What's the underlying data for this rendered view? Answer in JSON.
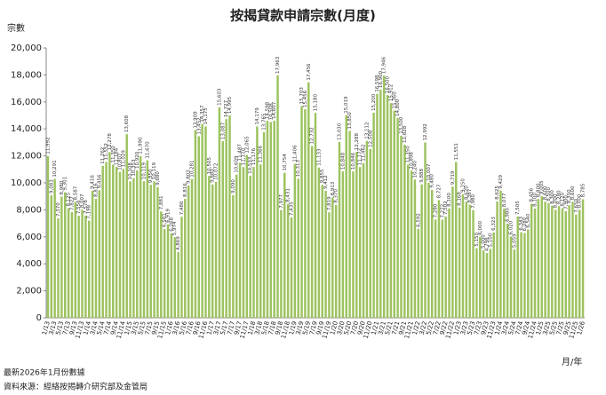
{
  "chart_data": {
    "type": "bar",
    "title": "按揭貸款申請宗數(月度)",
    "y_label": "宗數",
    "x_label": "月/年",
    "footnotes": [
      "最新2026年1月份數據",
      "資料來源：經絡按揭轉介研究部及金管局"
    ],
    "color": "#9dc35f",
    "ylim": [
      0,
      20000
    ],
    "yticks": [
      0,
      {
        "value": 2000,
        "label": "2,000"
      },
      {
        "value": 4000,
        "label": "4,000"
      },
      {
        "value": 6000,
        "label": "6,000"
      },
      {
        "value": 8000,
        "label": "8,000"
      },
      {
        "value": 10000,
        "label": "10,000"
      },
      {
        "value": 12000,
        "label": "12,000"
      },
      {
        "value": 14000,
        "label": "14,000"
      },
      {
        "value": 16000,
        "label": "16,000"
      },
      {
        "value": 18000,
        "label": "18,000"
      },
      {
        "value": 20000,
        "label": "20,000"
      }
    ],
    "categories": [
      "1/13",
      null,
      "3/13",
      null,
      "5/13",
      null,
      "7/13",
      null,
      "9/13",
      null,
      "11/13",
      null,
      "1/14",
      null,
      "3/14",
      null,
      "5/14",
      null,
      "7/14",
      null,
      "9/14",
      null,
      "11/14",
      null,
      "1/15",
      null,
      "3/15",
      null,
      "5/15",
      null,
      "7/15",
      null,
      "9/15",
      null,
      "11/15",
      null,
      "1/16",
      null,
      "3/16",
      null,
      "5/16",
      null,
      "7/16",
      null,
      "9/16",
      null,
      "11/16",
      null,
      "1/17",
      null,
      "3/17",
      null,
      "5/17",
      null,
      "7/17",
      null,
      "9/17",
      null,
      "11/17",
      null,
      "1/18",
      null,
      "3/18",
      null,
      "5/18",
      null,
      "7/18",
      null,
      "9/18",
      null,
      "11/18",
      null,
      "1/19",
      null,
      "3/19",
      null,
      "5/19",
      null,
      "7/19",
      null,
      "9/19",
      null,
      "11/19",
      null,
      "1/20",
      null,
      "3/20",
      null,
      "5/20",
      null,
      "7/20",
      null,
      "9/20",
      null,
      "11/20",
      null,
      "1/21",
      null,
      "3/21",
      null,
      "5/21",
      null,
      "7/21",
      null,
      "9/21",
      null,
      "11/21",
      null,
      "1/22",
      null,
      "3/22",
      null,
      "5/22",
      null,
      "7/22",
      null,
      "9/22",
      null,
      "11/22",
      null,
      "1/23",
      null,
      "3/23",
      null,
      "5/23",
      null,
      "7/23",
      null,
      "9/23",
      null,
      "11/23",
      null,
      "1/24",
      null,
      "3/24",
      null,
      "5/24",
      null,
      "7/24",
      null,
      "9/24",
      null,
      "11/24",
      null,
      "1/25",
      null,
      "3/25",
      null,
      "5/25",
      null,
      "7/25",
      null,
      "9/25",
      null,
      "11/25",
      null,
      "1/26"
    ],
    "values": [
      11992,
      9083,
      10291,
      7370,
      8980,
      9301,
      8125,
      7827,
      8587,
      7556,
      8007,
      7578,
      7198,
      9416,
      8816,
      9456,
      11262,
      11552,
      12278,
      11350,
      11184,
      10807,
      11029,
      13608,
      10108,
      10353,
      10920,
      11990,
      10119,
      11670,
      9850,
      10119,
      9680,
      7881,
      6581,
      6919,
      6268,
      5974,
      4869,
      7486,
      8816,
      9803,
      10281,
      13909,
      13452,
      14357,
      14175,
      10505,
      9880,
      10072,
      15603,
      13087,
      14727,
      14995,
      9090,
      10609,
      11487,
      11170,
      12065,
      10533,
      11176,
      14179,
      11366,
      13765,
      14598,
      14508,
      14607,
      17963,
      7977,
      10754,
      8431,
      7435,
      11406,
      10313,
      15703,
      15456,
      17456,
      12732,
      15180,
      11133,
      9855,
      9412,
      7819,
      8913,
      8370,
      13030,
      10848,
      15019,
      13850,
      10846,
      12288,
      11172,
      11462,
      13112,
      12508,
      15200,
      16598,
      16900,
      17946,
      16500,
      15912,
      15360,
      14800,
      13500,
      12828,
      11350,
      10898,
      10240,
      6592,
      9888,
      12992,
      10007,
      9480,
      7280,
      8727,
      7272,
      7502,
      8100,
      9719,
      11551,
      8168,
      9150,
      8620,
      8387,
      7980,
      5150,
      6000,
      5000,
      4798,
      5100,
      6323,
      8625,
      9429,
      8077,
      6980,
      6020,
      5059,
      7505,
      6343,
      6280,
      6540,
      8456,
      8100,
      8800,
      9005,
      8600,
      8500,
      8300,
      8000,
      8280,
      8120,
      7900,
      8350,
      8600,
      7650,
      8000,
      8785
    ],
    "value_labels": [
      "11,992",
      "9,083",
      "10,291",
      "7,370",
      "8,980",
      "9,301",
      "8,125",
      "7,827",
      "8,587",
      "7,556",
      "8,007",
      "7,578",
      "7,198",
      "9,416",
      "8,816",
      "9,456",
      "11,262",
      "11,552",
      "12,278",
      "11,350",
      "11,184",
      "10,807",
      "11,029",
      "13,608",
      "10,108",
      "10,353",
      "10,920",
      "11,990",
      "10,119",
      "11,670",
      "9,850",
      "10,119",
      "9,680",
      "7,881",
      "6,581",
      "6,919",
      "6,268",
      "5,974",
      "4,869",
      "7,486",
      "8,816",
      "9,803",
      "10,281",
      "13,909",
      "13,452",
      "14,357",
      "14,175",
      "10,505",
      "9,880",
      "10,072",
      "15,603",
      "13,087",
      "14,727",
      "14,995",
      "9,090",
      "10,609",
      "11,487",
      "11,170",
      "12,065",
      "10,533",
      "11,176",
      "14,179",
      "11,366",
      "13,765",
      "14,598",
      "14,508",
      "14,607",
      "17,963",
      "7,977",
      "10,754",
      "8,431",
      "7,435",
      "11,406",
      "10,313",
      "15,703",
      "15,456",
      "17,456",
      "12,732",
      "15,180",
      "11,133",
      "9,855",
      "9,412",
      "7,819",
      "8,913",
      "8,370",
      "13,030",
      "10,848",
      "15,019",
      "13,850",
      "10,846",
      "12,288",
      "11,172",
      "11,462",
      "13,112",
      "12,508",
      "15,200",
      "16,598",
      "16,900",
      "17,946",
      "16,500",
      "15,912",
      "15,360",
      "14,800",
      "13,500",
      "12,828",
      "11,350",
      "10,898",
      "10,240",
      "6,592",
      "9,888",
      "12,992",
      "10,007",
      "9,480",
      "7,280",
      "8,727",
      "7,272",
      "7,502",
      "8,100",
      "9,719",
      "11,551",
      "8,168",
      "9,150",
      "8,620",
      "8,387",
      "7,980",
      "5,150",
      "6,000",
      "5,000",
      "4,798",
      "5,100",
      "6,323",
      "8,625",
      "9,429",
      "8,077",
      "6,980",
      "6,020",
      "5,059",
      "7,505",
      "6,343",
      "6,280",
      "6,540",
      "8,456",
      "8,100",
      "8,800",
      "9,005",
      "8,600",
      "8,500",
      "8,300",
      "8,000",
      "8,280",
      "8,120",
      "7,900",
      "8,350",
      "8,600",
      "7,650",
      "8,000",
      "8,785"
    ]
  }
}
